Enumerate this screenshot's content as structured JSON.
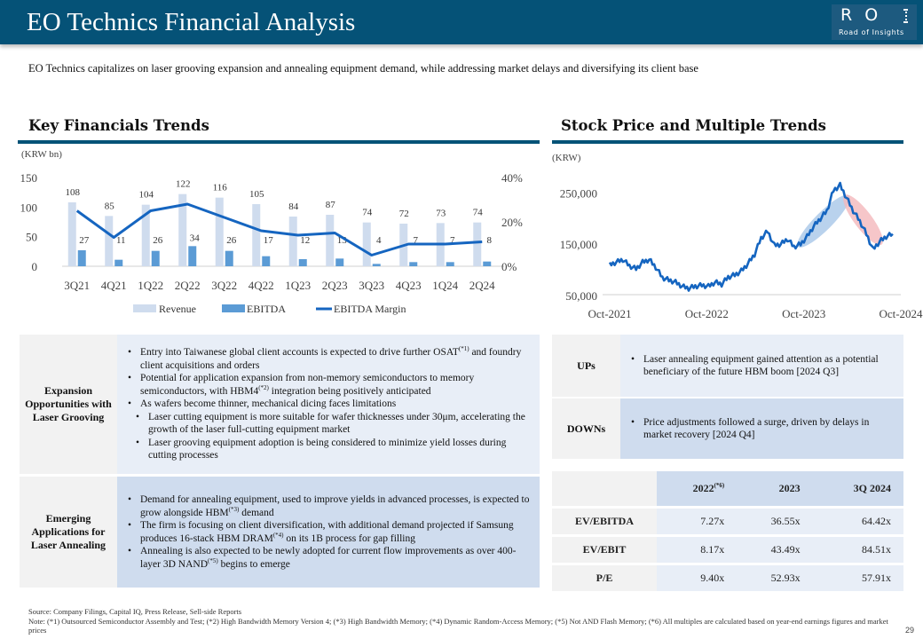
{
  "header": {
    "title": "EO Technics Financial Analysis",
    "logo": {
      "main": "RO",
      "tagline": "Road of Insights"
    }
  },
  "subtitle": "EO Technics capitalizes on laser grooving expansion and annealing equipment demand, while addressing market delays and diversifying its client base",
  "colors": {
    "brand": "#055277",
    "revenue": "#cfdcee",
    "ebitda": "#5b9bd5",
    "margin": "#1565c0",
    "up_band": "#a8c7e8",
    "down_band": "#f4b8bc"
  },
  "sections": {
    "left_title": "Key Financials Trends",
    "right_title": "Stock Price and Multiple Trends"
  },
  "chart_data": [
    {
      "type": "bar",
      "title": "Key Financials Trends",
      "unit_label": "(KRW bn)",
      "categories": [
        "3Q21",
        "4Q21",
        "1Q22",
        "2Q22",
        "3Q22",
        "4Q22",
        "1Q23",
        "2Q23",
        "3Q23",
        "4Q23",
        "1Q24",
        "2Q24"
      ],
      "series": [
        {
          "name": "Revenue",
          "type": "bar",
          "axis": "left",
          "values": [
            108,
            85,
            104,
            122,
            116,
            105,
            84,
            87,
            74,
            72,
            73,
            74
          ]
        },
        {
          "name": "EBITDA",
          "type": "bar",
          "axis": "left",
          "values": [
            27,
            11,
            26,
            34,
            26,
            17,
            12,
            13,
            4,
            7,
            7,
            8
          ]
        },
        {
          "name": "EBITDA Margin",
          "type": "line",
          "axis": "right",
          "values": [
            25,
            13,
            25,
            28,
            22,
            16,
            14,
            15,
            5,
            10,
            10,
            11
          ]
        }
      ],
      "left_axis": {
        "ylim": [
          0,
          150
        ],
        "ticks": [
          "0",
          "50",
          "100",
          "150"
        ]
      },
      "right_axis": {
        "ylim": [
          0,
          40
        ],
        "ticks": [
          "0%",
          "20%",
          "40%"
        ]
      },
      "legend": [
        "Revenue",
        "EBITDA",
        "EBITDA Margin"
      ],
      "legend_position": "bottom"
    },
    {
      "type": "line",
      "title": "Stock Price and Multiple Trends",
      "unit_label": "(KRW)",
      "x_ticks": [
        "Oct-2021",
        "Oct-2022",
        "Oct-2023",
        "Oct-2024"
      ],
      "y_ticks": [
        "50,000",
        "150,000",
        "250,000"
      ],
      "ylim": [
        50000,
        280000
      ],
      "series": [
        {
          "name": "Stock Price",
          "points_monthly": [
            [
              0,
              110000
            ],
            [
              1,
              115000
            ],
            [
              2,
              120000
            ],
            [
              3,
              108000
            ],
            [
              4,
              102000
            ],
            [
              5,
              115000
            ],
            [
              6,
              120000
            ],
            [
              7,
              105000
            ],
            [
              8,
              85000
            ],
            [
              9,
              80000
            ],
            [
              10,
              76000
            ],
            [
              11,
              68000
            ],
            [
              12,
              64000
            ],
            [
              13,
              68000
            ],
            [
              14,
              70000
            ],
            [
              15,
              68000
            ],
            [
              16,
              76000
            ],
            [
              17,
              72000
            ],
            [
              18,
              86000
            ],
            [
              19,
              90000
            ],
            [
              20,
              98000
            ],
            [
              21,
              112000
            ],
            [
              22,
              130000
            ],
            [
              23,
              162000
            ],
            [
              24,
              175000
            ],
            [
              25,
              148000
            ],
            [
              26,
              150000
            ],
            [
              27,
              160000
            ],
            [
              28,
              145000
            ],
            [
              29,
              150000
            ],
            [
              30,
              165000
            ],
            [
              31,
              185000
            ],
            [
              32,
              200000
            ],
            [
              33,
              215000
            ],
            [
              34,
              255000
            ],
            [
              35,
              265000
            ],
            [
              36,
              240000
            ],
            [
              37,
              215000
            ],
            [
              38,
              195000
            ],
            [
              39,
              170000
            ],
            [
              40,
              140000
            ],
            [
              41,
              155000
            ],
            [
              42,
              165000
            ],
            [
              43,
              170000
            ]
          ]
        }
      ],
      "annotations": [
        {
          "label": "up-trend band",
          "color": "blue",
          "from_month": 29,
          "to_month": 36
        },
        {
          "label": "down-trend band",
          "color": "red",
          "from_month": 36,
          "to_month": 41
        }
      ]
    }
  ],
  "opportunities": [
    {
      "label": "Expansion Opportunities with Laser Grooving",
      "bullets": [
        {
          "text": "Entry into Taiwanese global client accounts is expected to drive further OSAT",
          "sup": "(*1)",
          "tail": " and foundry client acquisitions and orders",
          "level": 1
        },
        {
          "text": "Potential for application expansion from non-memory semiconductors to memory semiconductors, with HBM4",
          "sup": "(*2)",
          "tail": " integration being positively anticipated",
          "level": 1
        },
        {
          "text": "As wafers become thinner, mechanical dicing faces limitations",
          "sup": "",
          "tail": "",
          "level": 1
        },
        {
          "text": "Laser cutting equipment is more suitable for wafer thicknesses under 30μm, accelerating the growth of the laser full-cutting equipment market",
          "sup": "",
          "tail": "",
          "level": 2
        },
        {
          "text": "Laser grooving equipment adoption is being considered to minimize yield losses during cutting processes",
          "sup": "",
          "tail": "",
          "level": 2
        }
      ]
    },
    {
      "label": "Emerging Applications for Laser Annealing",
      "bullets": [
        {
          "text": "Demand for annealing equipment, used to improve yields in advanced processes, is expected to grow alongside HBM",
          "sup": "(*3)",
          "tail": " demand",
          "level": 1
        },
        {
          "text": "The firm is focusing on client diversification, with additional demand projected if Samsung produces 16-stack HBM DRAM",
          "sup": "(*4)",
          "tail": " on its 1B process for gap filling",
          "level": 1
        },
        {
          "text": "Annealing is also expected to be newly adopted for current flow improvements as over 400-layer 3D NAND",
          "sup": "(*5)",
          "tail": " begins to emerge",
          "level": 1
        }
      ]
    }
  ],
  "updowns": [
    {
      "label": "UPs",
      "text": "Laser annealing equipment gained attention as a potential beneficiary of the future HBM boom [2024 Q3]"
    },
    {
      "label": "DOWNs",
      "text": "Price adjustments followed a surge, driven by delays in market recovery [2024 Q4]"
    }
  ],
  "multiples": {
    "columns": [
      {
        "label": "2022",
        "sup": "(*6)"
      },
      {
        "label": "2023",
        "sup": ""
      },
      {
        "label": "3Q 2024",
        "sup": ""
      }
    ],
    "rows": [
      {
        "label": "EV/EBITDA",
        "values": [
          "7.27x",
          "36.55x",
          "64.42x"
        ]
      },
      {
        "label": "EV/EBIT",
        "values": [
          "8.17x",
          "43.49x",
          "84.51x"
        ]
      },
      {
        "label": "P/E",
        "values": [
          "9.40x",
          "52.93x",
          "57.91x"
        ]
      }
    ]
  },
  "footer": {
    "source": "Source: Company Filings, Capital IQ, Press Release, Sell-side Reports",
    "note": "Note: (*1) Outsourced Semiconductor Assembly and Test; (*2) High Bandwidth Memory Version 4; (*3) High Bandwidth Memory; (*4) Dynamic Random-Access Memory; (*5) Not AND Flash Memory; (*6) All multiples are calculated based on year-end earnings figures and market prices",
    "page_number": "29"
  }
}
